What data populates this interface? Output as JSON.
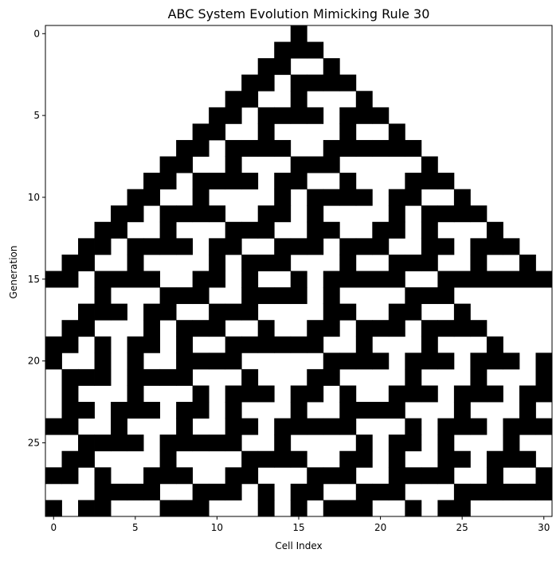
{
  "chart_data": {
    "type": "heatmap",
    "title": "ABC System Evolution Mimicking Rule 30",
    "xlabel": "Cell Index",
    "ylabel": "Generation",
    "width": 31,
    "generations": 30,
    "x_ticks": [
      0,
      5,
      10,
      15,
      20,
      25,
      30
    ],
    "y_ticks": [
      0,
      5,
      10,
      15,
      20,
      25
    ],
    "grid": false,
    "colors": {
      "on": "#000000",
      "off": "#ffffff"
    },
    "initial_row": [
      0,
      0,
      0,
      0,
      0,
      0,
      0,
      0,
      0,
      0,
      0,
      0,
      0,
      0,
      0,
      1,
      0,
      0,
      0,
      0,
      0,
      0,
      0,
      0,
      0,
      0,
      0,
      0,
      0,
      0,
      0
    ],
    "boundary": "periodic",
    "rule": 30
  }
}
